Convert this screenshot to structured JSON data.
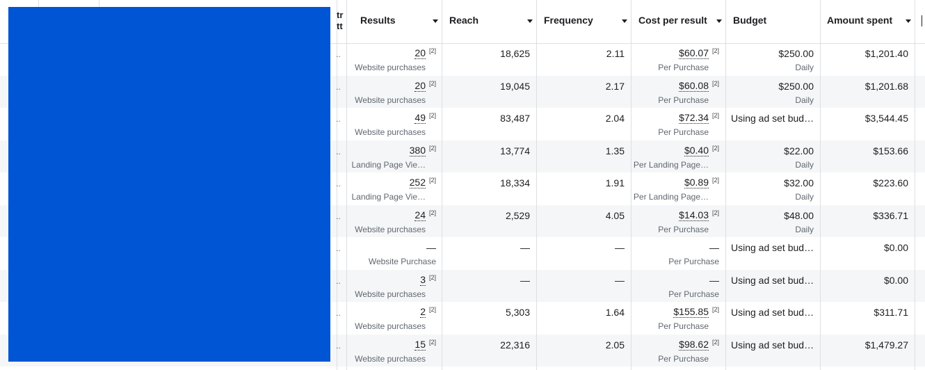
{
  "table": {
    "cut_header": [
      "tr",
      "tt"
    ],
    "headers": [
      "Results",
      "Reach",
      "Frequency",
      "Cost per result",
      "Budget",
      "Amount spent"
    ],
    "rows": [
      {
        "lead": "..",
        "results": {
          "value": "20",
          "note": "[2]",
          "sub": "Website purchases"
        },
        "reach": "18,625",
        "frequency": "2.11",
        "cost": {
          "value": "$60.07",
          "note": "[2]",
          "sub": "Per Purchase"
        },
        "budget": {
          "value": "$250.00",
          "sub": "Daily"
        },
        "spent": "$1,201.40"
      },
      {
        "lead": "..",
        "results": {
          "value": "20",
          "note": "[2]",
          "sub": "Website purchases"
        },
        "reach": "19,045",
        "frequency": "2.17",
        "cost": {
          "value": "$60.08",
          "note": "[2]",
          "sub": "Per Purchase"
        },
        "budget": {
          "value": "$250.00",
          "sub": "Daily"
        },
        "spent": "$1,201.68"
      },
      {
        "lead": "..",
        "results": {
          "value": "49",
          "note": "[2]",
          "sub": "Website purchases"
        },
        "reach": "83,487",
        "frequency": "2.04",
        "cost": {
          "value": "$72.34",
          "note": "[2]",
          "sub": "Per Purchase"
        },
        "budget": {
          "value": "Using ad set bud…"
        },
        "spent": "$3,544.45"
      },
      {
        "lead": "..",
        "results": {
          "value": "380",
          "note": "[2]",
          "sub": "Landing Page Vie…"
        },
        "reach": "13,774",
        "frequency": "1.35",
        "cost": {
          "value": "$0.40",
          "note": "[2]",
          "sub": "Per Landing Page…"
        },
        "budget": {
          "value": "$22.00",
          "sub": "Daily"
        },
        "spent": "$153.66"
      },
      {
        "lead": "..",
        "results": {
          "value": "252",
          "note": "[2]",
          "sub": "Landing Page Vie…"
        },
        "reach": "18,334",
        "frequency": "1.91",
        "cost": {
          "value": "$0.89",
          "note": "[2]",
          "sub": "Per Landing Page…"
        },
        "budget": {
          "value": "$32.00",
          "sub": "Daily"
        },
        "spent": "$223.60"
      },
      {
        "lead": "..",
        "results": {
          "value": "24",
          "note": "[2]",
          "sub": "Website purchases"
        },
        "reach": "2,529",
        "frequency": "4.05",
        "cost": {
          "value": "$14.03",
          "note": "[2]",
          "sub": "Per Purchase"
        },
        "budget": {
          "value": "$48.00",
          "sub": "Daily"
        },
        "spent": "$336.71"
      },
      {
        "lead": "..",
        "results": {
          "value": "—",
          "sub": "Website Purchase"
        },
        "reach": "—",
        "frequency": "—",
        "cost": {
          "value": "—",
          "sub": "Per Purchase"
        },
        "budget": {
          "value": "Using ad set bud…"
        },
        "spent": "$0.00"
      },
      {
        "lead": "..",
        "results": {
          "value": "3",
          "note": "[2]",
          "sub": "Website purchases"
        },
        "reach": "—",
        "frequency": "—",
        "cost": {
          "value": "—",
          "sub": "Per Purchase"
        },
        "budget": {
          "value": "Using ad set bud…"
        },
        "spent": "$0.00"
      },
      {
        "lead": "..",
        "results": {
          "value": "2",
          "note": "[2]",
          "sub": "Website purchases"
        },
        "reach": "5,303",
        "frequency": "1.64",
        "cost": {
          "value": "$155.85",
          "note": "[2]",
          "sub": "Per Purchase"
        },
        "budget": {
          "value": "Using ad set bud…"
        },
        "spent": "$311.71"
      },
      {
        "lead": "..",
        "results": {
          "value": "15",
          "note": "[2]",
          "sub": "Website purchases"
        },
        "reach": "22,316",
        "frequency": "2.05",
        "cost": {
          "value": "$98.62",
          "note": "[2]",
          "sub": "Per Purchase"
        },
        "budget": {
          "value": "Using ad set bud…"
        },
        "spent": "$1,479.27"
      }
    ]
  }
}
